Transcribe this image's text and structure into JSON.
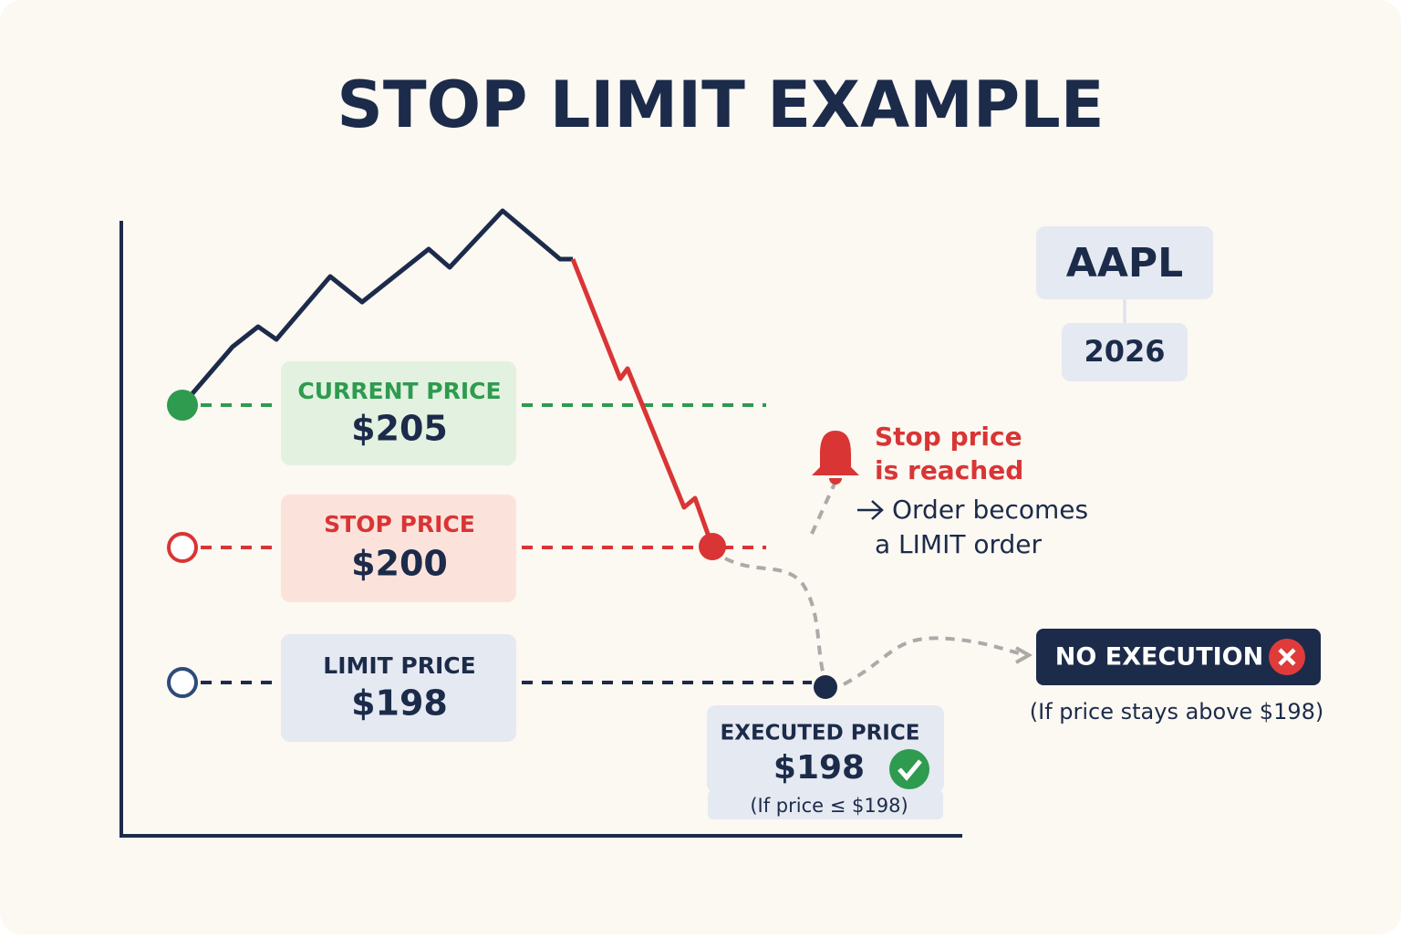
{
  "header": {
    "title": "STOP LIMIT EXAMPLE"
  },
  "ticker": {
    "symbol": "AAPL",
    "year": "2026"
  },
  "levels": [
    {
      "label": "CURRENT PRICE",
      "price": "$205"
    },
    {
      "label": "STOP PRICE",
      "price": "$200"
    },
    {
      "label": "LIMIT PRICE",
      "price": "$198"
    }
  ],
  "stop_note": {
    "lines": [
      "Stop price",
      "is reached"
    ],
    "detail": [
      "Order becomes",
      "a LIMIT order"
    ]
  },
  "executed": {
    "label": "EXECUTED PRICE",
    "price": "$198",
    "condition": "(If price ≤ $198)"
  },
  "no_execution": {
    "label": "NO EXECUTION",
    "condition": "(If price stays above $198)"
  }
}
